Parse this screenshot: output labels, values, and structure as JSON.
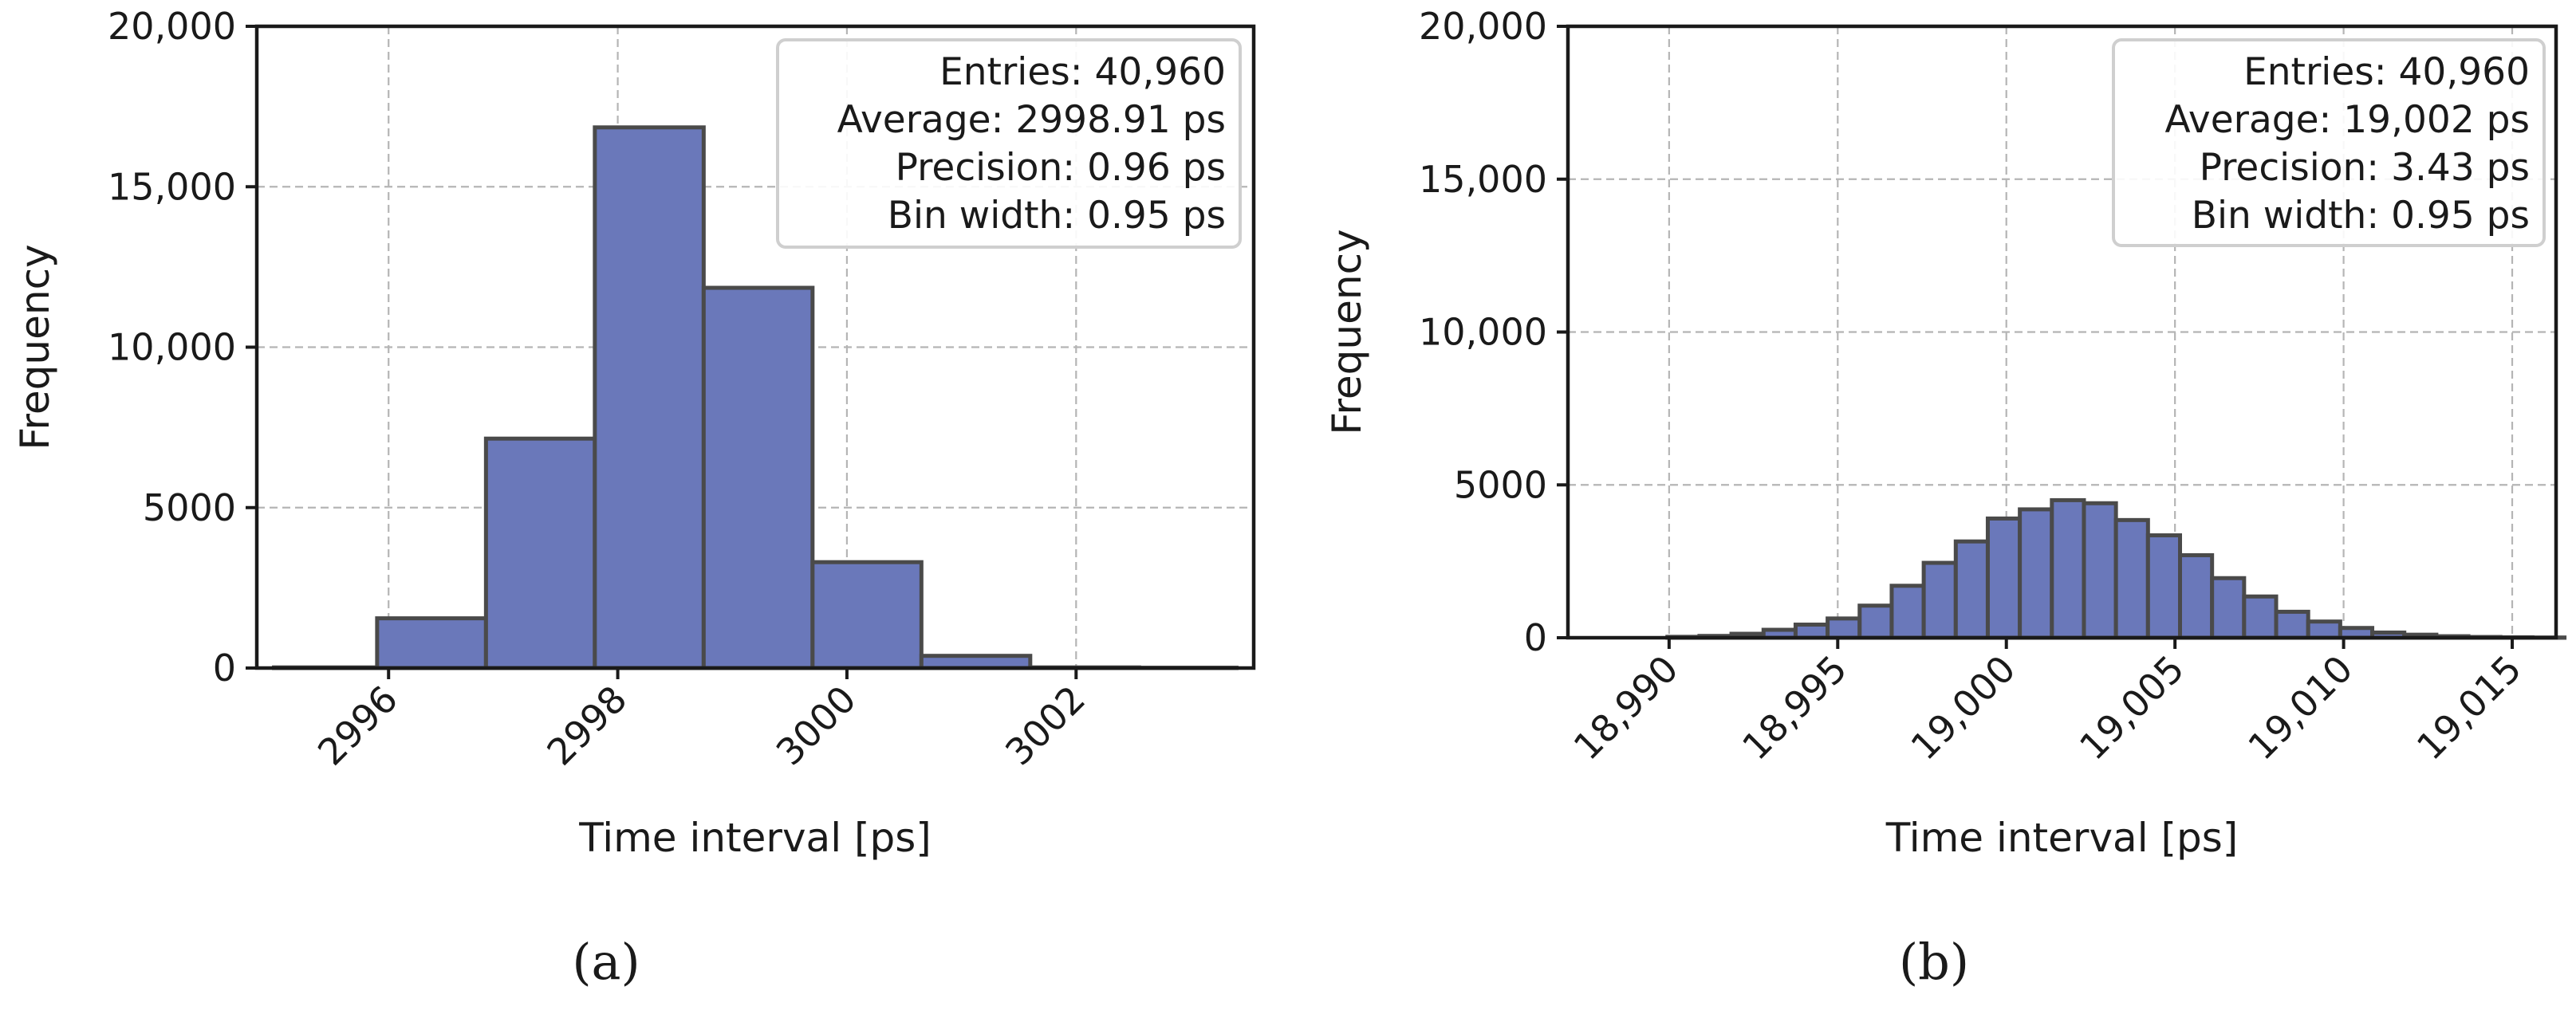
{
  "chart_data": [
    {
      "type": "bar",
      "panel_label": "(a)",
      "xlabel": "Time interval [ps]",
      "ylabel": "Frequency",
      "xlim": [
        2994.85,
        3003.55
      ],
      "ylim": [
        0,
        20000
      ],
      "xticks": [
        2996,
        2998,
        3000,
        3002
      ],
      "xtick_labels": [
        "2996",
        "2998",
        "3000",
        "3002"
      ],
      "yticks": [
        0,
        5000,
        10000,
        15000,
        20000
      ],
      "ytick_labels": [
        "0",
        "5000",
        "10,000",
        "15,000",
        "20,000"
      ],
      "grid": true,
      "legend_position": "top-right",
      "legend_lines": [
        "Entries: 40,960",
        "Average: 2998.91 ps",
        "Precision: 0.96 ps",
        "Bin width: 0.95 ps"
      ],
      "bins": [
        {
          "x0": 2995.0,
          "x1": 2995.9,
          "value": 20
        },
        {
          "x0": 2995.9,
          "x1": 2996.85,
          "value": 1550
        },
        {
          "x0": 2996.85,
          "x1": 2997.8,
          "value": 7150
        },
        {
          "x0": 2997.8,
          "x1": 2998.75,
          "value": 16850
        },
        {
          "x0": 2998.75,
          "x1": 2999.7,
          "value": 11850
        },
        {
          "x0": 2999.7,
          "x1": 3000.65,
          "value": 3300
        },
        {
          "x0": 3000.65,
          "x1": 3001.6,
          "value": 380
        },
        {
          "x0": 3001.6,
          "x1": 3002.55,
          "value": 20
        },
        {
          "x0": 3002.55,
          "x1": 3003.4,
          "value": 10
        }
      ]
    },
    {
      "type": "bar",
      "panel_label": "(b)",
      "xlabel": "Time interval [ps]",
      "ylabel": "Frequency",
      "xlim": [
        18987,
        19016.3
      ],
      "ylim": [
        0,
        20000
      ],
      "xticks": [
        18990,
        18995,
        19000,
        19005,
        19010,
        19015
      ],
      "xtick_labels": [
        "18,990",
        "18,995",
        "19,000",
        "19,005",
        "19,010",
        "19,015"
      ],
      "yticks": [
        0,
        5000,
        10000,
        15000,
        20000
      ],
      "ytick_labels": [
        "0",
        "5000",
        "10,000",
        "15,000",
        "20,000"
      ],
      "grid": true,
      "legend_position": "top-right",
      "legend_lines": [
        "Entries: 40,960",
        "Average: 19,002 ps",
        "Precision: 3.43 ps",
        "Bin width: 0.95 ps"
      ],
      "bin_start": 18989.95,
      "bin_width": 0.95,
      "values": [
        30,
        60,
        130,
        260,
        430,
        630,
        1050,
        1700,
        2450,
        3150,
        3900,
        4200,
        4500,
        4400,
        3850,
        3350,
        2700,
        1950,
        1350,
        850,
        530,
        320,
        170,
        100,
        50,
        25,
        15,
        8
      ]
    }
  ]
}
